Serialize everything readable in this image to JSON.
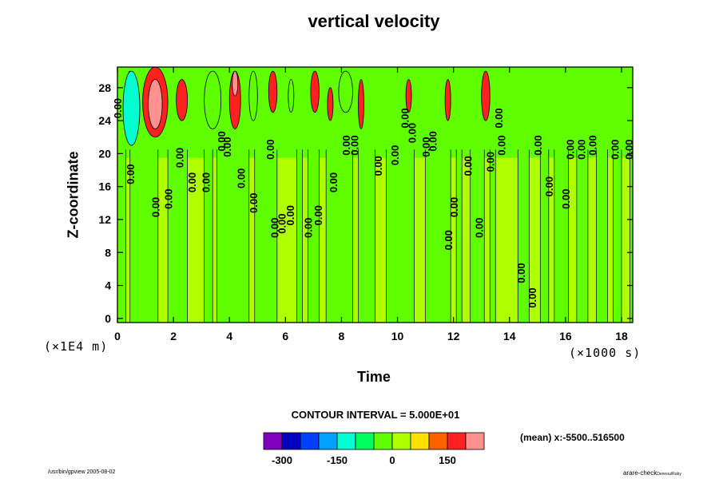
{
  "chart_data": {
    "type": "contour",
    "title": "vertical velocity",
    "xlabel": "Time",
    "ylabel": "Z-coordinate",
    "x_unit": "(×1000 s)",
    "y_unit": "(×1E4 m)",
    "xlim": [
      0,
      18.4
    ],
    "ylim": [
      -0.5,
      30.5
    ],
    "x_ticks": [
      "0",
      "2",
      "4",
      "6",
      "8",
      "10",
      "12",
      "14",
      "16",
      "18"
    ],
    "y_ticks": [
      "0",
      "4",
      "8",
      "12",
      "16",
      "20",
      "24",
      "28"
    ],
    "contour_interval": "CONTOUR INTERVAL = 5.000E+01",
    "contour_label": "0.00",
    "levels": [
      -350,
      -300,
      -250,
      -200,
      -150,
      -100,
      -50,
      0,
      50,
      100,
      150,
      200
    ],
    "level_colors": [
      "#8000c0",
      "#0000c0",
      "#0040ff",
      "#00a0ff",
      "#00ffd0",
      "#00ff60",
      "#60ff00",
      "#b0ff00",
      "#ffe000",
      "#ff6000",
      "#ff2020",
      "#ff9090"
    ],
    "colorbar_tick_values": [
      "-300",
      "-150",
      "0",
      "150"
    ],
    "mean_note": "(mean) x:-5500..516500",
    "cells": [
      {
        "x0": 0.3,
        "x1": 0.6,
        "y0": 23,
        "y1": 30,
        "value": -300
      },
      {
        "x0": 0.2,
        "x1": 0.8,
        "y0": 21,
        "y1": 30,
        "value": -150
      },
      {
        "x0": 0.9,
        "x1": 1.8,
        "y0": 22,
        "y1": 30.5,
        "value": 150
      },
      {
        "x0": 1.1,
        "x1": 1.6,
        "y0": 23,
        "y1": 29,
        "value": 200
      },
      {
        "x0": 2.1,
        "x1": 2.5,
        "y0": 24,
        "y1": 29,
        "value": 150
      },
      {
        "x0": 3.1,
        "x1": 3.7,
        "y0": 23,
        "y1": 30,
        "value": -50
      },
      {
        "x0": 4.0,
        "x1": 4.4,
        "y0": 23,
        "y1": 30,
        "value": 150
      },
      {
        "x0": 4.1,
        "x1": 4.3,
        "y0": 27,
        "y1": 30,
        "value": 200
      },
      {
        "x0": 4.7,
        "x1": 5.0,
        "y0": 24,
        "y1": 30,
        "value": -50
      },
      {
        "x0": 5.4,
        "x1": 5.7,
        "y0": 25,
        "y1": 30,
        "value": 150
      },
      {
        "x0": 6.1,
        "x1": 6.3,
        "y0": 25,
        "y1": 29,
        "value": -50
      },
      {
        "x0": 6.9,
        "x1": 7.2,
        "y0": 25,
        "y1": 30,
        "value": 150
      },
      {
        "x0": 7.5,
        "x1": 7.7,
        "y0": 24,
        "y1": 28,
        "value": 150
      },
      {
        "x0": 7.9,
        "x1": 8.4,
        "y0": 25,
        "y1": 30,
        "value": -50
      },
      {
        "x0": 8.6,
        "x1": 8.8,
        "y0": 23,
        "y1": 29,
        "value": 150
      },
      {
        "x0": 10.3,
        "x1": 10.5,
        "y0": 25,
        "y1": 29,
        "value": 150
      },
      {
        "x0": 11.7,
        "x1": 11.9,
        "y0": 24,
        "y1": 29,
        "value": 150
      },
      {
        "x0": 13.0,
        "x1": 13.3,
        "y0": 24,
        "y1": 30,
        "value": 150
      }
    ],
    "labels": [
      {
        "x": 0.05,
        "y": 25.5
      },
      {
        "x": 0.5,
        "y": 17.5
      },
      {
        "x": 1.4,
        "y": 13.5
      },
      {
        "x": 1.85,
        "y": 14.5
      },
      {
        "x": 2.25,
        "y": 19.5
      },
      {
        "x": 2.7,
        "y": 16.5
      },
      {
        "x": 3.2,
        "y": 16.5
      },
      {
        "x": 3.75,
        "y": 21.5
      },
      {
        "x": 3.95,
        "y": 20.8
      },
      {
        "x": 4.45,
        "y": 17.0
      },
      {
        "x": 4.9,
        "y": 14.0
      },
      {
        "x": 5.5,
        "y": 20.5
      },
      {
        "x": 5.65,
        "y": 11.0
      },
      {
        "x": 5.9,
        "y": 11.5
      },
      {
        "x": 6.2,
        "y": 12.5
      },
      {
        "x": 6.85,
        "y": 11.0
      },
      {
        "x": 7.2,
        "y": 12.5
      },
      {
        "x": 7.75,
        "y": 16.5
      },
      {
        "x": 8.2,
        "y": 21.0
      },
      {
        "x": 8.5,
        "y": 21.0
      },
      {
        "x": 9.35,
        "y": 18.5
      },
      {
        "x": 9.95,
        "y": 19.8
      },
      {
        "x": 10.3,
        "y": 24.3
      },
      {
        "x": 10.55,
        "y": 22.5
      },
      {
        "x": 11.05,
        "y": 20.8
      },
      {
        "x": 11.3,
        "y": 21.5
      },
      {
        "x": 11.85,
        "y": 9.5
      },
      {
        "x": 12.05,
        "y": 13.5
      },
      {
        "x": 12.55,
        "y": 18.5
      },
      {
        "x": 12.95,
        "y": 11.0
      },
      {
        "x": 13.35,
        "y": 19.0
      },
      {
        "x": 13.65,
        "y": 24.3
      },
      {
        "x": 13.75,
        "y": 21.0
      },
      {
        "x": 14.45,
        "y": 5.5
      },
      {
        "x": 14.85,
        "y": 2.5
      },
      {
        "x": 15.05,
        "y": 21.0
      },
      {
        "x": 15.45,
        "y": 16.0
      },
      {
        "x": 16.05,
        "y": 14.5
      },
      {
        "x": 16.2,
        "y": 20.5
      },
      {
        "x": 16.6,
        "y": 20.5
      },
      {
        "x": 17.0,
        "y": 21.0
      },
      {
        "x": 17.8,
        "y": 20.5
      },
      {
        "x": 18.3,
        "y": 20.5
      }
    ]
  },
  "footer": {
    "left": "/usr/bin/gpview 2005-08-02",
    "right": "arare-check",
    "right_sub": "Dennou/Ruby"
  }
}
